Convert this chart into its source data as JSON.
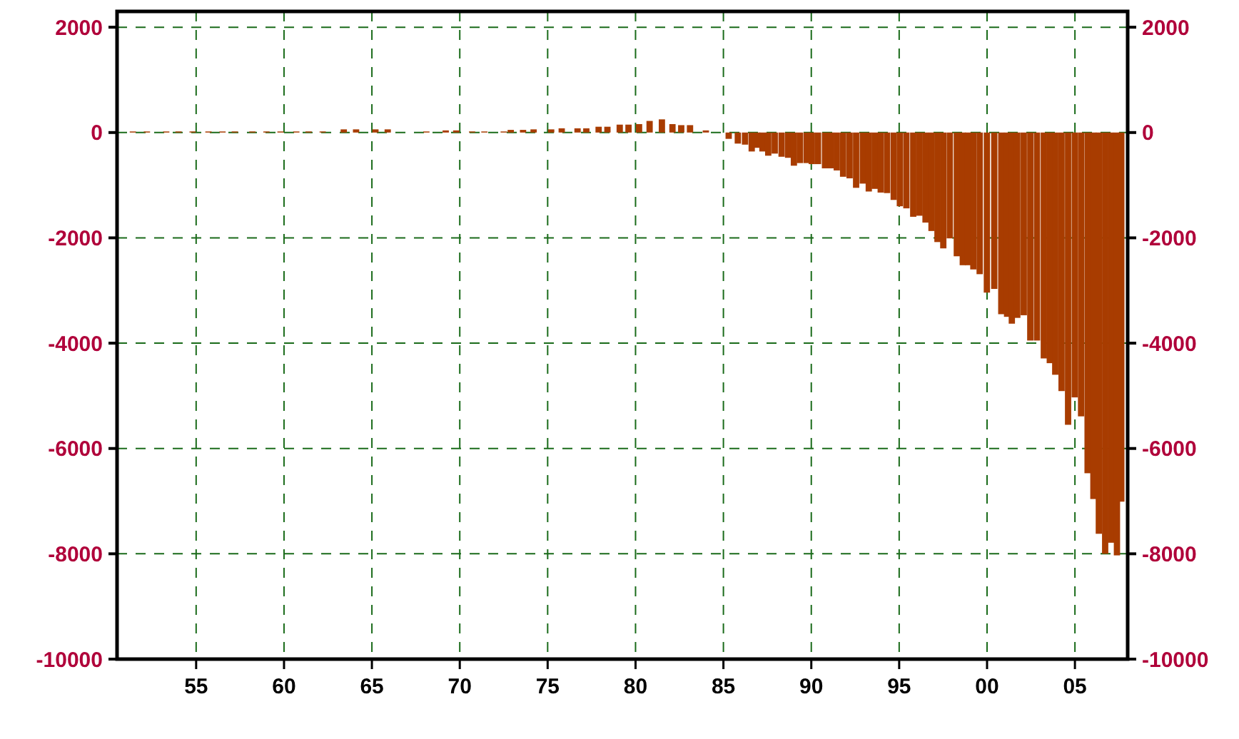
{
  "chart_data": {
    "type": "bar",
    "color": "#a83c00",
    "x": [
      1951.4,
      1952.2,
      1953.3,
      1954.0,
      1954.8,
      1955.7,
      1956.5,
      1957.2,
      1958.2,
      1959.0,
      1959.8,
      1960.7,
      1961.4,
      1962.2,
      1963.4,
      1964.1,
      1965.2,
      1965.9,
      1968.1,
      1969.2,
      1969.8,
      1970.7,
      1971.4,
      1972.5,
      1972.9,
      1973.6,
      1974.2,
      1975.2,
      1975.8,
      1976.7,
      1977.2,
      1977.9,
      1978.4,
      1979.1,
      1979.6,
      1980.2,
      1980.8,
      1981.5,
      1982.1,
      1982.6,
      1983.1,
      1984.0,
      1985.3,
      1985.82,
      1986.23,
      1986.61,
      1986.92,
      1987.22,
      1987.55,
      1987.92,
      1988.31,
      1988.68,
      1989.01,
      1989.35,
      1989.73,
      1990.03,
      1990.38,
      1990.78,
      1991.11,
      1991.45,
      1991.81,
      1992.18,
      1992.55,
      1992.93,
      1993.27,
      1993.61,
      1993.95,
      1994.31,
      1994.69,
      1995.04,
      1995.41,
      1995.8,
      1996.16,
      1996.5,
      1996.84,
      1997.18,
      1997.51,
      1997.88,
      1998.28,
      1998.62,
      1998.92,
      1999.22,
      1999.58,
      1999.99,
      2000.41,
      2000.81,
      2001.14,
      2001.41,
      2001.72,
      2002.09,
      2002.46,
      2002.84,
      2003.23,
      2003.57,
      2003.88,
      2004.24,
      2004.61,
      2004.99,
      2005.35,
      2005.72,
      2006.05,
      2006.36,
      2006.72,
      2007.05,
      2007.39,
      2007.64
    ],
    "values": [
      20,
      20,
      20,
      20,
      20,
      20,
      20,
      20,
      20,
      20,
      20,
      20,
      20,
      20,
      60,
      60,
      60,
      60,
      20,
      40,
      40,
      20,
      20,
      20,
      50,
      50,
      60,
      60,
      80,
      80,
      80,
      110,
      110,
      150,
      150,
      160,
      220,
      250,
      160,
      140,
      140,
      40,
      -120,
      -210,
      -230,
      -360,
      -290,
      -360,
      -440,
      -400,
      -460,
      -480,
      -630,
      -580,
      -580,
      -600,
      -600,
      -680,
      -680,
      -720,
      -840,
      -870,
      -1050,
      -970,
      -1120,
      -1070,
      -1140,
      -1150,
      -1280,
      -1400,
      -1440,
      -1600,
      -1580,
      -1710,
      -1870,
      -2080,
      -2200,
      -2010,
      -2350,
      -2520,
      -2520,
      -2600,
      -2690,
      -3040,
      -2970,
      -3450,
      -3500,
      -3630,
      -3520,
      -3470,
      -3950,
      -3950,
      -4290,
      -4380,
      -4600,
      -4910,
      -5550,
      -5030,
      -5390,
      -6470,
      -6960,
      -7620,
      -8000,
      -7790,
      -8030,
      -7010
    ],
    "xlim": [
      1950.5,
      2008
    ],
    "xticks": [
      {
        "value": 1955,
        "label": "55"
      },
      {
        "value": 1960,
        "label": "60"
      },
      {
        "value": 1965,
        "label": "65"
      },
      {
        "value": 1970,
        "label": "70"
      },
      {
        "value": 1975,
        "label": "75"
      },
      {
        "value": 1980,
        "label": "80"
      },
      {
        "value": 1985,
        "label": "85"
      },
      {
        "value": 1990,
        "label": "90"
      },
      {
        "value": 1995,
        "label": "95"
      },
      {
        "value": 2000,
        "label": "00"
      },
      {
        "value": 2005,
        "label": "05"
      }
    ],
    "ylim": [
      -10000,
      2300
    ],
    "yticks": [
      -10000,
      -8000,
      -6000,
      -4000,
      -2000,
      0,
      2000
    ],
    "y2lim": [
      -10000,
      2300
    ],
    "y2ticks": [
      -10000,
      -8000,
      -6000,
      -4000,
      -2000,
      0,
      2000
    ],
    "grid": true
  }
}
